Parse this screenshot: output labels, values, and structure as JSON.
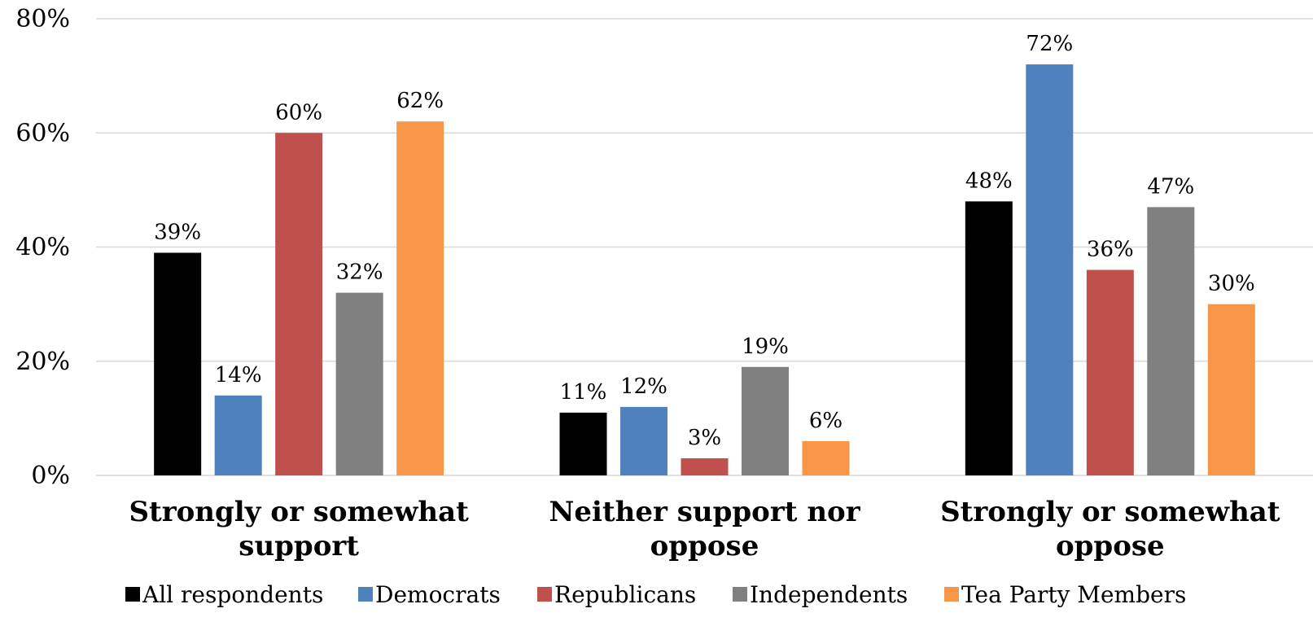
{
  "chart_data": {
    "type": "bar",
    "categories": [
      [
        "Strongly or somewhat",
        "support"
      ],
      [
        "Neither support nor",
        "oppose"
      ],
      [
        "Strongly or somewhat",
        "oppose"
      ]
    ],
    "series": [
      {
        "name": "All respondents",
        "color": "#000000",
        "values": [
          39,
          11,
          48
        ]
      },
      {
        "name": "Democrats",
        "color": "#4f81bd",
        "values": [
          14,
          12,
          72
        ]
      },
      {
        "name": "Republicans",
        "color": "#c0504d",
        "values": [
          60,
          3,
          36
        ]
      },
      {
        "name": "Independents",
        "color": "#808080",
        "values": [
          32,
          19,
          47
        ]
      },
      {
        "name": "Tea Party Members",
        "color": "#f79646",
        "values": [
          62,
          6,
          30
        ]
      }
    ],
    "ylim": [
      0,
      80
    ],
    "yticks": [
      0,
      20,
      40,
      60,
      80
    ],
    "tick_suffix": "%",
    "value_suffix": "%",
    "grid": true,
    "legend_position": "bottom"
  }
}
